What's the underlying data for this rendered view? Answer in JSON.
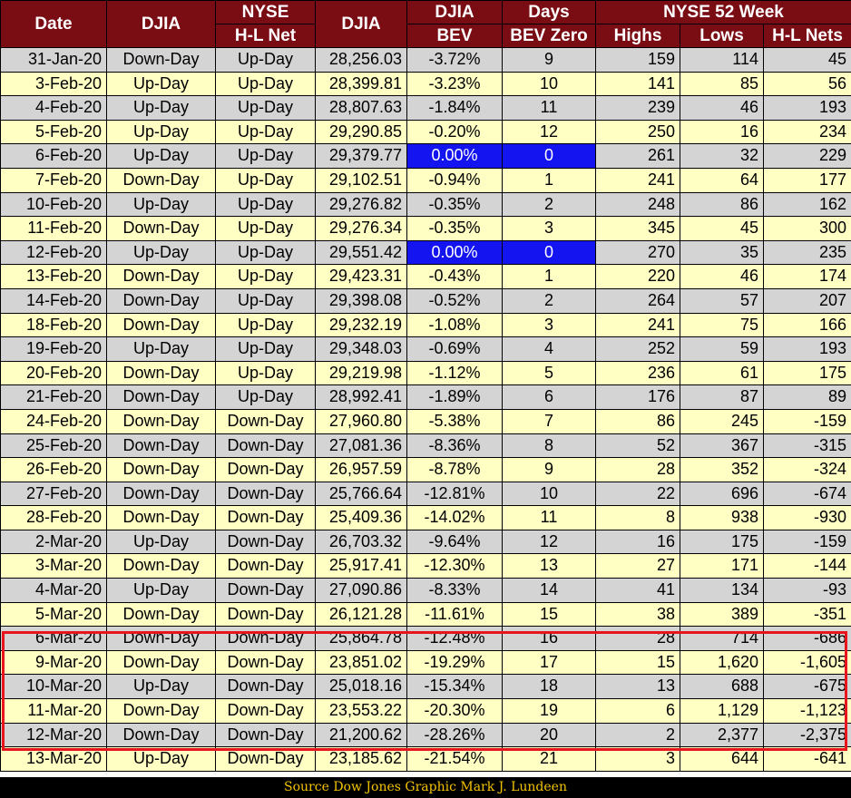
{
  "header": {
    "date": "Date",
    "djia_dir": "DJIA",
    "nyse_top": "NYSE",
    "nyse_bottom": "H-L Net",
    "djia": "DJIA",
    "bev_top": "DJIA",
    "bev_bottom": "BEV",
    "days_top": "Days",
    "days_bottom": "BEV Zero",
    "group_52w": "NYSE 52 Week",
    "highs": "Highs",
    "lows": "Lows",
    "nets": "H-L Nets"
  },
  "rows": [
    {
      "date": "31-Jan-20",
      "djia_dir": "Down-Day",
      "nyse": "Up-Day",
      "djia": "28,256.03",
      "bev": "-3.72%",
      "days": "9",
      "highs": "159",
      "lows": "114",
      "nets": "45"
    },
    {
      "date": "3-Feb-20",
      "djia_dir": "Up-Day",
      "nyse": "Up-Day",
      "djia": "28,399.81",
      "bev": "-3.23%",
      "days": "10",
      "highs": "141",
      "lows": "85",
      "nets": "56"
    },
    {
      "date": "4-Feb-20",
      "djia_dir": "Up-Day",
      "nyse": "Up-Day",
      "djia": "28,807.63",
      "bev": "-1.84%",
      "days": "11",
      "highs": "239",
      "lows": "46",
      "nets": "193"
    },
    {
      "date": "5-Feb-20",
      "djia_dir": "Up-Day",
      "nyse": "Up-Day",
      "djia": "29,290.85",
      "bev": "-0.20%",
      "days": "12",
      "highs": "250",
      "lows": "16",
      "nets": "234"
    },
    {
      "date": "6-Feb-20",
      "djia_dir": "Up-Day",
      "nyse": "Up-Day",
      "djia": "29,379.77",
      "bev": "0.00%",
      "days": "0",
      "highs": "261",
      "lows": "32",
      "nets": "229",
      "bev_zero": true
    },
    {
      "date": "7-Feb-20",
      "djia_dir": "Down-Day",
      "nyse": "Up-Day",
      "djia": "29,102.51",
      "bev": "-0.94%",
      "days": "1",
      "highs": "241",
      "lows": "64",
      "nets": "177"
    },
    {
      "date": "10-Feb-20",
      "djia_dir": "Up-Day",
      "nyse": "Up-Day",
      "djia": "29,276.82",
      "bev": "-0.35%",
      "days": "2",
      "highs": "248",
      "lows": "86",
      "nets": "162"
    },
    {
      "date": "11-Feb-20",
      "djia_dir": "Down-Day",
      "nyse": "Up-Day",
      "djia": "29,276.34",
      "bev": "-0.35%",
      "days": "3",
      "highs": "345",
      "lows": "45",
      "nets": "300"
    },
    {
      "date": "12-Feb-20",
      "djia_dir": "Up-Day",
      "nyse": "Up-Day",
      "djia": "29,551.42",
      "bev": "0.00%",
      "days": "0",
      "highs": "270",
      "lows": "35",
      "nets": "235",
      "bev_zero": true
    },
    {
      "date": "13-Feb-20",
      "djia_dir": "Down-Day",
      "nyse": "Up-Day",
      "djia": "29,423.31",
      "bev": "-0.43%",
      "days": "1",
      "highs": "220",
      "lows": "46",
      "nets": "174"
    },
    {
      "date": "14-Feb-20",
      "djia_dir": "Down-Day",
      "nyse": "Up-Day",
      "djia": "29,398.08",
      "bev": "-0.52%",
      "days": "2",
      "highs": "264",
      "lows": "57",
      "nets": "207"
    },
    {
      "date": "18-Feb-20",
      "djia_dir": "Down-Day",
      "nyse": "Up-Day",
      "djia": "29,232.19",
      "bev": "-1.08%",
      "days": "3",
      "highs": "241",
      "lows": "75",
      "nets": "166"
    },
    {
      "date": "19-Feb-20",
      "djia_dir": "Up-Day",
      "nyse": "Up-Day",
      "djia": "29,348.03",
      "bev": "-0.69%",
      "days": "4",
      "highs": "252",
      "lows": "59",
      "nets": "193"
    },
    {
      "date": "20-Feb-20",
      "djia_dir": "Down-Day",
      "nyse": "Up-Day",
      "djia": "29,219.98",
      "bev": "-1.12%",
      "days": "5",
      "highs": "236",
      "lows": "61",
      "nets": "175"
    },
    {
      "date": "21-Feb-20",
      "djia_dir": "Down-Day",
      "nyse": "Up-Day",
      "djia": "28,992.41",
      "bev": "-1.89%",
      "days": "6",
      "highs": "176",
      "lows": "87",
      "nets": "89"
    },
    {
      "date": "24-Feb-20",
      "djia_dir": "Down-Day",
      "nyse": "Down-Day",
      "djia": "27,960.80",
      "bev": "-5.38%",
      "days": "7",
      "highs": "86",
      "lows": "245",
      "nets": "-159"
    },
    {
      "date": "25-Feb-20",
      "djia_dir": "Down-Day",
      "nyse": "Down-Day",
      "djia": "27,081.36",
      "bev": "-8.36%",
      "days": "8",
      "highs": "52",
      "lows": "367",
      "nets": "-315"
    },
    {
      "date": "26-Feb-20",
      "djia_dir": "Down-Day",
      "nyse": "Down-Day",
      "djia": "26,957.59",
      "bev": "-8.78%",
      "days": "9",
      "highs": "28",
      "lows": "352",
      "nets": "-324"
    },
    {
      "date": "27-Feb-20",
      "djia_dir": "Down-Day",
      "nyse": "Down-Day",
      "djia": "25,766.64",
      "bev": "-12.81%",
      "days": "10",
      "highs": "22",
      "lows": "696",
      "nets": "-674"
    },
    {
      "date": "28-Feb-20",
      "djia_dir": "Down-Day",
      "nyse": "Down-Day",
      "djia": "25,409.36",
      "bev": "-14.02%",
      "days": "11",
      "highs": "8",
      "lows": "938",
      "nets": "-930"
    },
    {
      "date": "2-Mar-20",
      "djia_dir": "Up-Day",
      "nyse": "Down-Day",
      "djia": "26,703.32",
      "bev": "-9.64%",
      "days": "12",
      "highs": "16",
      "lows": "175",
      "nets": "-159"
    },
    {
      "date": "3-Mar-20",
      "djia_dir": "Down-Day",
      "nyse": "Down-Day",
      "djia": "25,917.41",
      "bev": "-12.30%",
      "days": "13",
      "highs": "27",
      "lows": "171",
      "nets": "-144"
    },
    {
      "date": "4-Mar-20",
      "djia_dir": "Up-Day",
      "nyse": "Down-Day",
      "djia": "27,090.86",
      "bev": "-8.33%",
      "days": "14",
      "highs": "41",
      "lows": "134",
      "nets": "-93"
    },
    {
      "date": "5-Mar-20",
      "djia_dir": "Down-Day",
      "nyse": "Down-Day",
      "djia": "26,121.28",
      "bev": "-11.61%",
      "days": "15",
      "highs": "38",
      "lows": "389",
      "nets": "-351"
    },
    {
      "date": "6-Mar-20",
      "djia_dir": "Down-Day",
      "nyse": "Down-Day",
      "djia": "25,864.78",
      "bev": "-12.48%",
      "days": "16",
      "highs": "28",
      "lows": "714",
      "nets": "-686"
    },
    {
      "date": "9-Mar-20",
      "djia_dir": "Down-Day",
      "nyse": "Down-Day",
      "djia": "23,851.02",
      "bev": "-19.29%",
      "days": "17",
      "highs": "15",
      "lows": "1,620",
      "nets": "-1,605"
    },
    {
      "date": "10-Mar-20",
      "djia_dir": "Up-Day",
      "nyse": "Down-Day",
      "djia": "25,018.16",
      "bev": "-15.34%",
      "days": "18",
      "highs": "13",
      "lows": "688",
      "nets": "-675"
    },
    {
      "date": "11-Mar-20",
      "djia_dir": "Down-Day",
      "nyse": "Down-Day",
      "djia": "23,553.22",
      "bev": "-20.30%",
      "days": "19",
      "highs": "6",
      "lows": "1,129",
      "nets": "-1,123"
    },
    {
      "date": "12-Mar-20",
      "djia_dir": "Down-Day",
      "nyse": "Down-Day",
      "djia": "21,200.62",
      "bev": "-28.26%",
      "days": "20",
      "highs": "2",
      "lows": "2,377",
      "nets": "-2,375"
    },
    {
      "date": "13-Mar-20",
      "djia_dir": "Up-Day",
      "nyse": "Down-Day",
      "djia": "23,185.62",
      "bev": "-21.54%",
      "days": "21",
      "highs": "3",
      "lows": "644",
      "nets": "-641"
    }
  ],
  "footer": "Source Dow Jones   Graphic Mark J. Lundeen",
  "colors": {
    "header_bg": "#7a0d14",
    "row_gray": "#d4d4d4",
    "row_yellow": "#ffffc4",
    "bev_zero_highlight": "#1414f0",
    "box_outline": "#e8141e",
    "footer_text": "#f2c200"
  }
}
